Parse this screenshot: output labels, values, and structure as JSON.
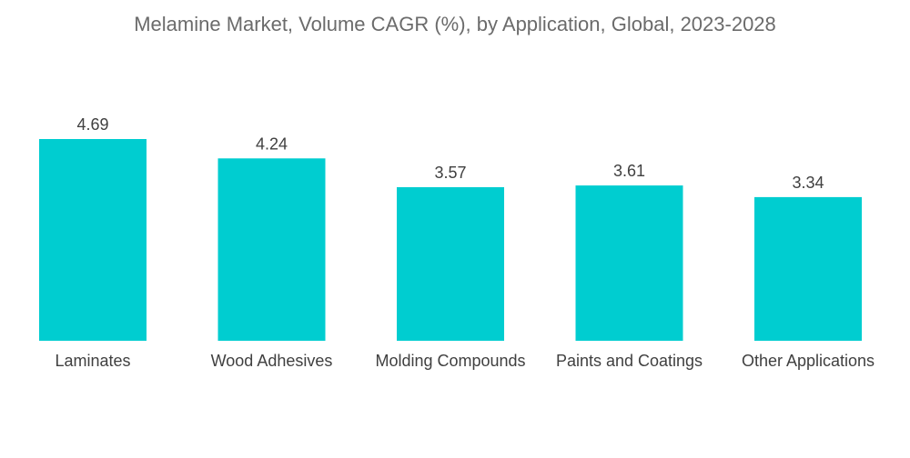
{
  "chart_data": {
    "type": "bar",
    "title": "Melamine Market, Volume CAGR (%), by Application, Global, 2023-2028",
    "xlabel": "",
    "ylabel": "",
    "categories": [
      "Laminates",
      "Wood Adhesives",
      "Molding Compounds",
      "Paints and Coatings",
      "Other Applications"
    ],
    "values": [
      4.69,
      4.24,
      3.57,
      3.61,
      3.34
    ],
    "value_labels": [
      "4.69",
      "4.24",
      "3.57",
      "3.61",
      "3.34"
    ],
    "ylim": [
      0,
      4.69
    ],
    "grid": false,
    "legend": "none",
    "bar_color": "#00cdd0"
  }
}
